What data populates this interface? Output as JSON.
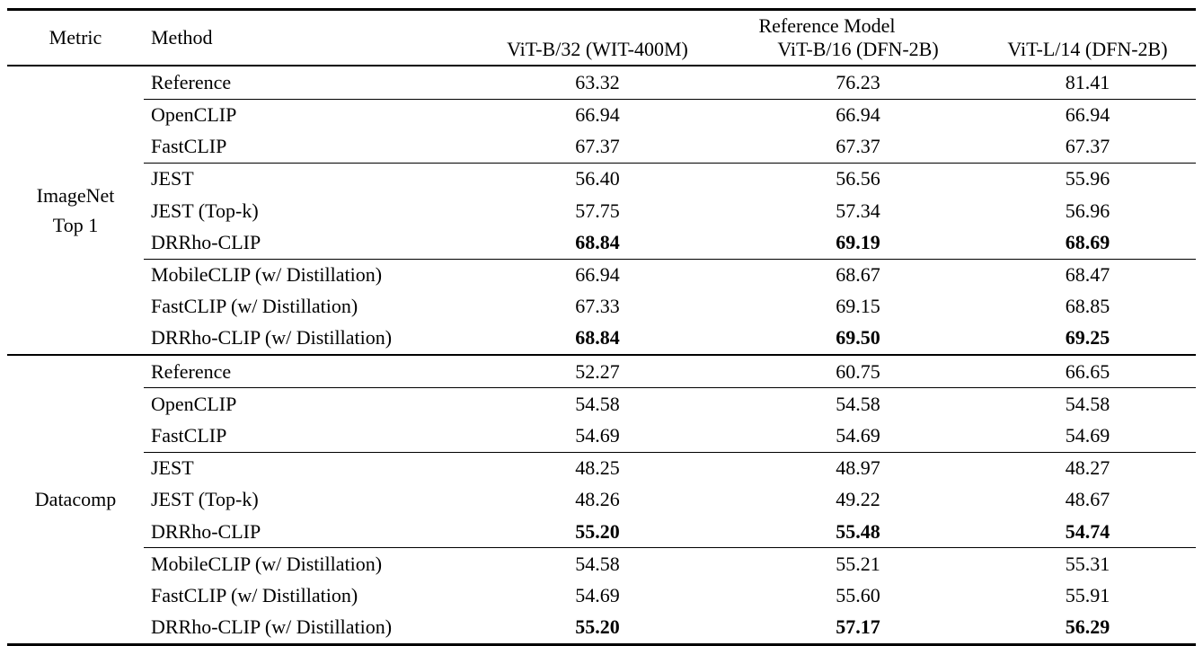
{
  "table": {
    "header": {
      "metric_label": "Metric",
      "method_label": "Method",
      "group_label": "Reference Model",
      "columns": [
        "ViT-B/32 (WIT-400M)",
        "ViT-B/16 (DFN-2B)",
        "ViT-L/14 (DFN-2B)"
      ]
    },
    "sections": [
      {
        "metric_lines": [
          "ImageNet",
          "Top 1"
        ],
        "groups": [
          {
            "rows": [
              {
                "method": "Reference",
                "values": [
                  "63.32",
                  "76.23",
                  "81.41"
                ],
                "bold": false
              }
            ]
          },
          {
            "rows": [
              {
                "method": "OpenCLIP",
                "values": [
                  "66.94",
                  "66.94",
                  "66.94"
                ],
                "bold": false
              },
              {
                "method": "FastCLIP",
                "values": [
                  "67.37",
                  "67.37",
                  "67.37"
                ],
                "bold": false
              }
            ]
          },
          {
            "rows": [
              {
                "method": "JEST",
                "values": [
                  "56.40",
                  "56.56",
                  "55.96"
                ],
                "bold": false
              },
              {
                "method": "JEST (Top-k)",
                "values": [
                  "57.75",
                  "57.34",
                  "56.96"
                ],
                "bold": false
              },
              {
                "method": "DRRho-CLIP",
                "values": [
                  "68.84",
                  "69.19",
                  "68.69"
                ],
                "bold": true
              }
            ]
          },
          {
            "rows": [
              {
                "method": "MobileCLIP (w/ Distillation)",
                "values": [
                  "66.94",
                  "68.67",
                  "68.47"
                ],
                "bold": false
              },
              {
                "method": "FastCLIP (w/ Distillation)",
                "values": [
                  "67.33",
                  "69.15",
                  "68.85"
                ],
                "bold": false
              },
              {
                "method": "DRRho-CLIP (w/ Distillation)",
                "values": [
                  "68.84",
                  "69.50",
                  "69.25"
                ],
                "bold": true
              }
            ]
          }
        ]
      },
      {
        "metric_lines": [
          "Datacomp"
        ],
        "groups": [
          {
            "rows": [
              {
                "method": "Reference",
                "values": [
                  "52.27",
                  "60.75",
                  "66.65"
                ],
                "bold": false
              }
            ]
          },
          {
            "rows": [
              {
                "method": "OpenCLIP",
                "values": [
                  "54.58",
                  "54.58",
                  "54.58"
                ],
                "bold": false
              },
              {
                "method": "FastCLIP",
                "values": [
                  "54.69",
                  "54.69",
                  "54.69"
                ],
                "bold": false
              }
            ]
          },
          {
            "rows": [
              {
                "method": "JEST",
                "values": [
                  "48.25",
                  "48.97",
                  "48.27"
                ],
                "bold": false
              },
              {
                "method": "JEST (Top-k)",
                "values": [
                  "48.26",
                  "49.22",
                  "48.67"
                ],
                "bold": false
              },
              {
                "method": "DRRho-CLIP",
                "values": [
                  "55.20",
                  "55.48",
                  "54.74"
                ],
                "bold": true
              }
            ]
          },
          {
            "rows": [
              {
                "method": "MobileCLIP (w/ Distillation)",
                "values": [
                  "54.58",
                  "55.21",
                  "55.31"
                ],
                "bold": false
              },
              {
                "method": "FastCLIP (w/ Distillation)",
                "values": [
                  "54.69",
                  "55.60",
                  "55.91"
                ],
                "bold": false
              },
              {
                "method": "DRRho-CLIP (w/ Distillation)",
                "values": [
                  "55.20",
                  "57.17",
                  "56.29"
                ],
                "bold": true
              }
            ]
          }
        ]
      }
    ]
  },
  "colors": {
    "text": "#000000",
    "background": "#ffffff",
    "rule": "#000000"
  }
}
